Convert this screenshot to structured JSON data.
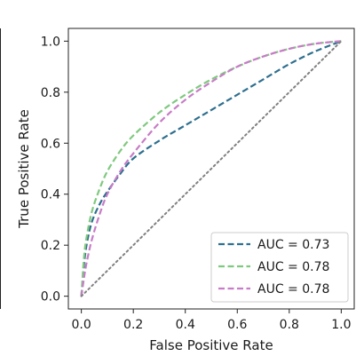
{
  "chart_data": {
    "type": "line",
    "xlabel": "False Positive Rate",
    "ylabel": "True Positive Rate",
    "xlim": [
      -0.05,
      1.05
    ],
    "ylim": [
      -0.05,
      1.05
    ],
    "xticks": [
      0.0,
      0.2,
      0.4,
      0.6,
      0.8,
      1.0
    ],
    "yticks": [
      0.0,
      0.2,
      0.4,
      0.6,
      0.8,
      1.0
    ],
    "xtick_labels": [
      "0.0",
      "0.2",
      "0.4",
      "0.6",
      "0.8",
      "1.0"
    ],
    "ytick_labels": [
      "0.0",
      "0.2",
      "0.4",
      "0.6",
      "0.8",
      "1.0"
    ],
    "grid": false,
    "legend_position": "bottom-right",
    "series": [
      {
        "name": "AUC = 0.73",
        "color": "#2e6f8e",
        "style": "dashed",
        "x": [
          0.0,
          0.01,
          0.02,
          0.04,
          0.07,
          0.1,
          0.15,
          0.2,
          0.3,
          0.4,
          0.5,
          0.6,
          0.7,
          0.8,
          0.9,
          1.0
        ],
        "y": [
          0.0,
          0.12,
          0.2,
          0.29,
          0.36,
          0.41,
          0.48,
          0.54,
          0.61,
          0.67,
          0.73,
          0.79,
          0.85,
          0.91,
          0.96,
          1.0
        ]
      },
      {
        "name": "AUC = 0.78",
        "color": "#7fc97f",
        "style": "dashed",
        "x": [
          0.0,
          0.01,
          0.02,
          0.04,
          0.07,
          0.1,
          0.15,
          0.2,
          0.3,
          0.4,
          0.5,
          0.6,
          0.7,
          0.8,
          0.9,
          1.0
        ],
        "y": [
          0.0,
          0.15,
          0.23,
          0.33,
          0.42,
          0.49,
          0.57,
          0.63,
          0.72,
          0.79,
          0.85,
          0.9,
          0.94,
          0.97,
          0.99,
          1.0
        ]
      },
      {
        "name": "AUC = 0.78",
        "color": "#c77cc7",
        "style": "dashed",
        "x": [
          0.0,
          0.01,
          0.02,
          0.04,
          0.07,
          0.1,
          0.15,
          0.2,
          0.3,
          0.4,
          0.5,
          0.6,
          0.7,
          0.8,
          0.9,
          1.0
        ],
        "y": [
          0.0,
          0.07,
          0.13,
          0.22,
          0.32,
          0.4,
          0.49,
          0.56,
          0.68,
          0.77,
          0.84,
          0.9,
          0.94,
          0.97,
          0.99,
          1.0
        ]
      },
      {
        "name": "",
        "color": "#808080",
        "style": "dotted",
        "x": [
          0.0,
          1.0
        ],
        "y": [
          0.0,
          1.0
        ]
      }
    ]
  }
}
